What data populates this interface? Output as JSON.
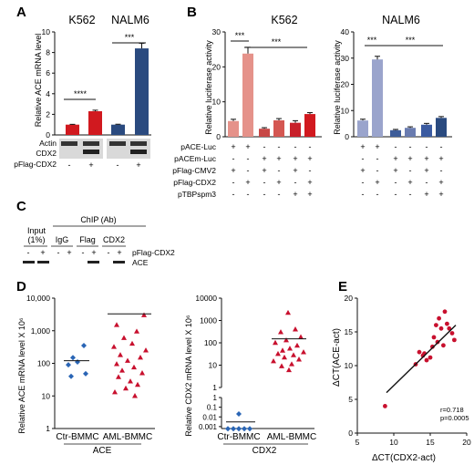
{
  "panels": {
    "A": {
      "letter": "A",
      "cell_titles": [
        "K562",
        "NALM6"
      ],
      "ylabel": "Relative ACE mRNA level",
      "ylim": [
        0,
        10
      ],
      "yticks": [
        "0",
        "2",
        "4",
        "6",
        "8",
        "10"
      ],
      "significance": [
        "****",
        "***"
      ],
      "blot_labels": [
        "Actin",
        "CDX2",
        "pFlag-CDX2"
      ],
      "signs": [
        "-",
        "+",
        "-",
        "+"
      ]
    },
    "B": {
      "letter": "B",
      "K562": {
        "title": "K562",
        "ylabel": "Relative luciferase activity",
        "ylim": [
          0,
          30
        ],
        "yticks": [
          "0",
          "10",
          "20",
          "30"
        ],
        "significance": [
          "***",
          "***"
        ]
      },
      "NALM6": {
        "title": "NALM6",
        "ylabel": "Relative luciferase activity",
        "ylim": [
          0,
          40
        ],
        "yticks": [
          "0",
          "10",
          "20",
          "30",
          "40"
        ],
        "significance": [
          "***",
          "***"
        ]
      },
      "row_labels": [
        "pACE-Luc",
        "pACEm-Luc",
        "pFlag-CMV2",
        "pFlag-CDX2",
        "pTBPspm3"
      ],
      "rows": [
        [
          "+",
          "+",
          "-",
          "-",
          "-",
          "-"
        ],
        [
          "-",
          "-",
          "+",
          "+",
          "+",
          "+"
        ],
        [
          "+",
          "-",
          "+",
          "-",
          "+",
          "-"
        ],
        [
          "-",
          "+",
          "-",
          "+",
          "-",
          "+"
        ],
        [
          "-",
          "-",
          "-",
          "-",
          "+",
          "+"
        ]
      ]
    },
    "C": {
      "letter": "C",
      "chip_header": "ChIP (Ab)",
      "input_label": "Input",
      "input_sub": "(1%)",
      "lane_groups": [
        "IgG",
        "Flag",
        "CDX2"
      ],
      "signs": [
        "-",
        "+",
        "-",
        "+",
        "-",
        "+",
        "-",
        "+"
      ],
      "row_label": "pFlag-CDX2",
      "band_label": "ACE"
    },
    "D": {
      "letter": "D",
      "left": {
        "ylabel": "Relative ACE mRNA level X 10⁶",
        "yticks": [
          "1",
          "10",
          "100",
          "1,000",
          "10,000"
        ],
        "groups": [
          "Ctr-BMMC",
          "AML-BMMC"
        ],
        "gene": "ACE"
      },
      "right": {
        "ylabel": "Relative CDX2 mRNA level X 10⁶",
        "yticks_upper": [
          "1",
          "10",
          "100",
          "1000",
          "10000"
        ],
        "yticks_lower": [
          "0.001",
          "0.01",
          "0.1",
          "1"
        ],
        "groups": [
          "Ctr-BMMC",
          "AML-BMMC"
        ],
        "gene": "CDX2"
      }
    },
    "E": {
      "letter": "E",
      "xlabel": "ΔCT(CDX2-act)",
      "ylabel": "ΔCT(ACE-act)",
      "xticks": [
        "5",
        "10",
        "15",
        "20"
      ],
      "yticks": [
        "0",
        "5",
        "10",
        "15",
        "20"
      ],
      "r_text": "r=0.718",
      "p_text": "p=0.0005"
    }
  },
  "colors": {
    "k562_ctrl": "#d1191f",
    "k562_ctrl_light": "#e5928a",
    "nalm6_dark": "#2a4a7f",
    "nalm6_light": "#9aa4cc",
    "nalm6_ctrl": "#3a5aa0",
    "ctr_marker": "#2a65b5",
    "aml_marker": "#c8102e"
  },
  "chart_data": [
    {
      "panel": "A",
      "type": "bar",
      "categories": [
        "K562 -",
        "K562 +",
        "NALM6 -",
        "NALM6 +"
      ],
      "values": [
        1.0,
        2.3,
        1.0,
        8.4
      ],
      "errors": [
        0.03,
        0.1,
        0.04,
        0.5
      ],
      "colors": [
        "#d1191f",
        "#d1191f",
        "#2a4a7f",
        "#2a4a7f"
      ],
      "ylabel": "Relative ACE mRNA level",
      "ylim": [
        0,
        10
      ]
    },
    {
      "panel": "B-K562",
      "type": "bar",
      "title": "K562",
      "values": [
        4.5,
        23.8,
        2.3,
        4.7,
        4.0,
        6.5
      ],
      "errors": [
        0.5,
        1.8,
        0.3,
        0.5,
        0.6,
        0.4
      ],
      "ylabel": "Relative luciferase activity",
      "ylim": [
        0,
        30
      ]
    },
    {
      "panel": "B-NALM6",
      "type": "bar",
      "title": "NALM6",
      "values": [
        6.2,
        29.5,
        2.5,
        3.4,
        4.6,
        7.2
      ],
      "errors": [
        0.5,
        1.2,
        0.3,
        0.4,
        0.5,
        0.5
      ],
      "ylabel": "Relative luciferase activity",
      "ylim": [
        0,
        40
      ]
    },
    {
      "panel": "D-ACE",
      "type": "scatter",
      "ylabel": "Relative ACE mRNA level X 10⁶",
      "log_y": true,
      "ylim": [
        1,
        10000
      ],
      "categories": [
        "Ctr-BMMC",
        "AML-BMMC"
      ],
      "points": {
        "Ctr-BMMC": [
          350,
          150,
          110,
          90,
          48,
          40
        ],
        "AML-BMMC": [
          3000,
          1500,
          950,
          600,
          400,
          320,
          250,
          180,
          150,
          120,
          95,
          75,
          60,
          50,
          38,
          28,
          22,
          17,
          13,
          10
        ]
      },
      "means": {
        "Ctr-BMMC": 120,
        "AML-BMMC": 3300
      }
    },
    {
      "panel": "D-CDX2",
      "type": "scatter",
      "ylabel": "Relative CDX2 mRNA level X 10⁶",
      "log_y": true,
      "categories": [
        "Ctr-BMMC",
        "AML-BMMC"
      ],
      "points": {
        "Ctr-BMMC": [
          0.02,
          0.0006,
          0.0006,
          0.0006,
          0.0006,
          0.0006
        ],
        "AML-BMMC": [
          2200,
          400,
          300,
          180,
          130,
          100,
          75,
          55,
          45,
          38,
          32,
          28,
          22,
          18,
          15,
          11,
          9,
          6
        ]
      },
      "means": {
        "Ctr-BMMC": 0.003,
        "AML-BMMC": 150
      }
    },
    {
      "panel": "E",
      "type": "scatter",
      "xlabel": "ΔCT(CDX2-act)",
      "ylabel": "ΔCT(ACE-act)",
      "xlim": [
        5,
        20
      ],
      "ylim": [
        0,
        20
      ],
      "x": [
        8.8,
        13.0,
        13.5,
        14.0,
        14.2,
        14.5,
        15.0,
        15.3,
        15.5,
        15.8,
        16.0,
        16.2,
        16.5,
        16.8,
        17.0,
        17.3,
        17.6,
        18.0,
        18.3
      ],
      "y": [
        4.0,
        10.2,
        12.0,
        11.5,
        11.8,
        10.8,
        11.2,
        12.8,
        14.2,
        16.0,
        13.5,
        17.0,
        15.5,
        13.0,
        18.0,
        16.2,
        15.5,
        14.8,
        13.8
      ],
      "fit": {
        "x": [
          9,
          18.5
        ],
        "y": [
          6.0,
          16.0
        ]
      },
      "annotation": [
        "r=0.718",
        "p=0.0005"
      ]
    }
  ]
}
